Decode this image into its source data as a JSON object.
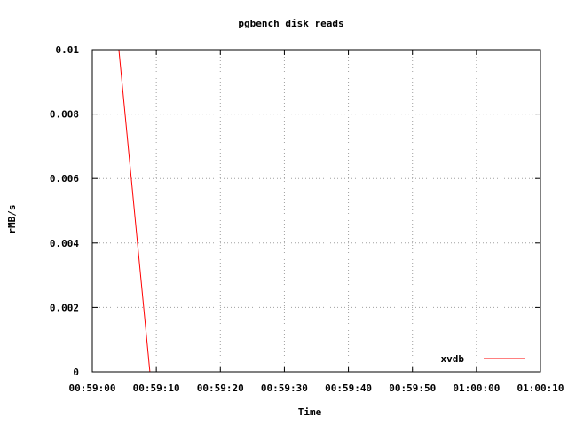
{
  "chart_data": {
    "type": "line",
    "title": "pgbench disk reads",
    "xlabel": "Time",
    "ylabel": "rMB/s",
    "x_ticks": [
      "00:59:00",
      "00:59:10",
      "00:59:20",
      "00:59:30",
      "00:59:40",
      "00:59:50",
      "01:00:00",
      "01:00:10"
    ],
    "x_range": [
      "00:59:00",
      "01:00:10"
    ],
    "y_ticks": [
      "0",
      "0.002",
      "0.004",
      "0.006",
      "0.008",
      "0.01"
    ],
    "ylim": [
      0,
      0.01
    ],
    "grid": true,
    "legend_position": "bottom-right",
    "series": [
      {
        "name": "xvdb",
        "color": "#ff0000",
        "points": [
          {
            "x": "00:59:04",
            "y": 0.0103
          },
          {
            "x": "00:59:09",
            "y": 0
          }
        ]
      }
    ]
  }
}
